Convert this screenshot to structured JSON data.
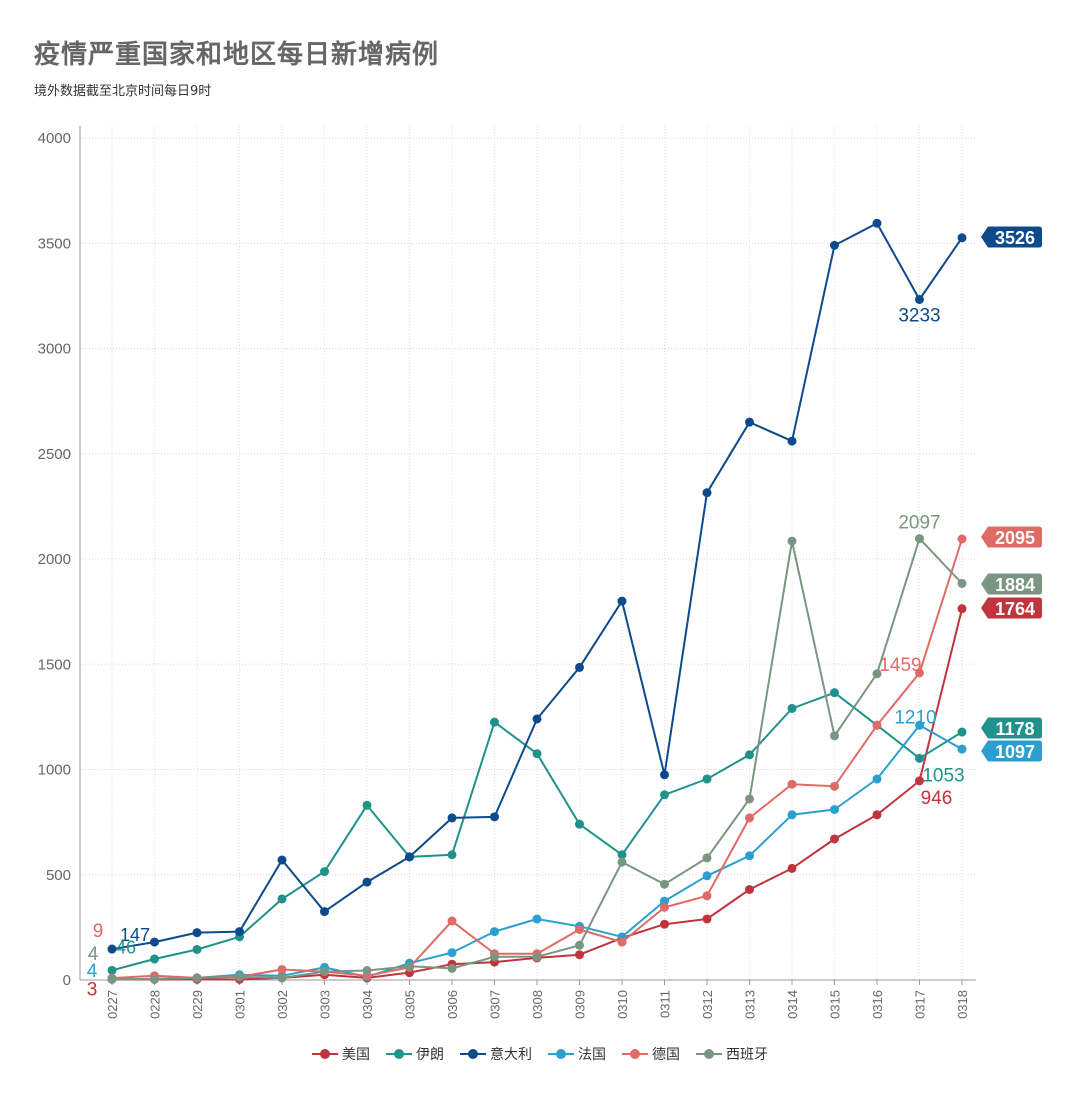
{
  "header": {
    "title": "疫情严重国家和地区每日新增病例",
    "subtitle": "境外数据截至北京时间每日9时"
  },
  "chart_data": {
    "type": "line",
    "title": "疫情严重国家和地区每日新增病例",
    "subtitle": "境外数据截至北京时间每日9时",
    "xlabel": "",
    "ylabel": "",
    "ylim": [
      0,
      4000
    ],
    "yticks": [
      "0",
      "500",
      "1000",
      "1500",
      "2000",
      "2500",
      "3000",
      "3500",
      "4000"
    ],
    "grid": true,
    "legend": "bottom-center",
    "x": [
      "0227",
      "0228",
      "0229",
      "0301",
      "0302",
      "0303",
      "0304",
      "0305",
      "0306",
      "0307",
      "0308",
      "0309",
      "0310",
      "0311",
      "0312",
      "0313",
      "0314",
      "0315",
      "0316",
      "0317",
      "0318"
    ],
    "series": [
      {
        "name": "美国",
        "color": "#c0343e",
        "values": [
          3,
          3,
          3,
          3,
          10,
          25,
          10,
          35,
          75,
          85,
          105,
          120,
          200,
          265,
          290,
          430,
          530,
          670,
          785,
          946,
          1764
        ]
      },
      {
        "name": "伊朗",
        "color": "#21918c",
        "values": [
          46,
          100,
          145,
          205,
          385,
          515,
          830,
          585,
          595,
          1225,
          1075,
          740,
          595,
          880,
          955,
          1070,
          1290,
          1365,
          1210,
          1053,
          1178
        ]
      },
      {
        "name": "意大利",
        "color": "#0d4a8c",
        "values": [
          147,
          180,
          225,
          230,
          570,
          325,
          465,
          585,
          770,
          775,
          1240,
          1485,
          1800,
          975,
          2315,
          2650,
          2560,
          3490,
          3595,
          3233,
          3526
        ]
      },
      {
        "name": "法国",
        "color": "#2a9fd0",
        "values": [
          4,
          5,
          10,
          25,
          20,
          60,
          15,
          80,
          130,
          230,
          290,
          255,
          205,
          375,
          495,
          590,
          785,
          810,
          955,
          1210,
          1097
        ]
      },
      {
        "name": "德国",
        "color": "#e06b66",
        "values": [
          9,
          20,
          10,
          15,
          50,
          40,
          20,
          60,
          280,
          125,
          125,
          240,
          180,
          345,
          400,
          770,
          930,
          920,
          1210,
          1459,
          2095
        ]
      },
      {
        "name": "西班牙",
        "color": "#7a9682",
        "values": [
          4,
          5,
          10,
          15,
          10,
          40,
          45,
          65,
          55,
          110,
          110,
          165,
          560,
          455,
          580,
          860,
          2085,
          1160,
          1455,
          2097,
          1884
        ]
      }
    ],
    "annotations": [
      {
        "series": "意大利",
        "x": "0227",
        "text": "147"
      },
      {
        "series": "伊朗",
        "x": "0227",
        "text": "46"
      },
      {
        "series": "德国",
        "x": "0227",
        "text": "9"
      },
      {
        "series": "西班牙",
        "x": "0227",
        "text": "4"
      },
      {
        "series": "法国",
        "x": "0227",
        "text": "4"
      },
      {
        "series": "美国",
        "x": "0227",
        "text": "3"
      },
      {
        "series": "意大利",
        "x": "0317",
        "text": "3233"
      },
      {
        "series": "西班牙",
        "x": "0317",
        "text": "2097"
      },
      {
        "series": "德国",
        "x": "0317",
        "text": "1459"
      },
      {
        "series": "法国",
        "x": "0317",
        "text": "1210"
      },
      {
        "series": "伊朗",
        "x": "0317",
        "text": "1053"
      },
      {
        "series": "美国",
        "x": "0317",
        "text": "946"
      }
    ],
    "end_labels": [
      {
        "series": "意大利",
        "text": "3526"
      },
      {
        "series": "德国",
        "text": "2095"
      },
      {
        "series": "西班牙",
        "text": "1884"
      },
      {
        "series": "美国",
        "text": "1764"
      },
      {
        "series": "伊朗",
        "text": "1178"
      },
      {
        "series": "法国",
        "text": "1097"
      }
    ]
  }
}
